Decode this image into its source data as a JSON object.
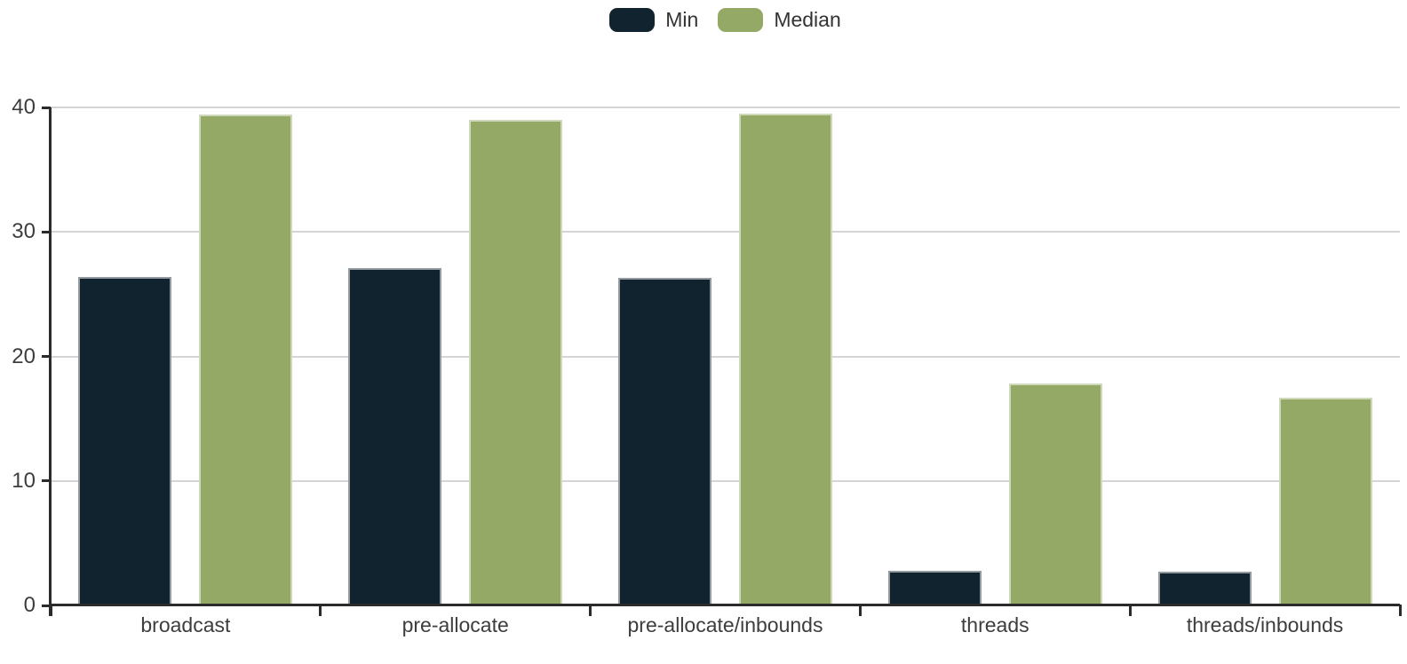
{
  "chart_data": {
    "type": "bar",
    "title": "",
    "xlabel": "",
    "ylabel": "",
    "categories": [
      "broadcast",
      "pre-allocate",
      "pre-allocate/inbounds",
      "threads",
      "threads/inbounds"
    ],
    "series": [
      {
        "name": "Min",
        "color": "#11232e",
        "values": [
          26.4,
          27.1,
          26.3,
          2.8,
          2.7
        ]
      },
      {
        "name": "Median",
        "color": "#95a967",
        "values": [
          39.4,
          39.0,
          39.5,
          17.8,
          16.7
        ]
      }
    ],
    "ylim": [
      0,
      40
    ],
    "yticks": [
      0,
      10,
      20,
      30,
      40
    ],
    "grid": true,
    "legend_position": "top-center"
  },
  "colors": {
    "background": "#ffffff",
    "grid": "#d4d4d4",
    "axis": "#2b2b2b",
    "tick_label": "#3d3d3d",
    "legend_text": "#333333",
    "bar_stroke": "rgba(255,255,255,0.55)"
  }
}
